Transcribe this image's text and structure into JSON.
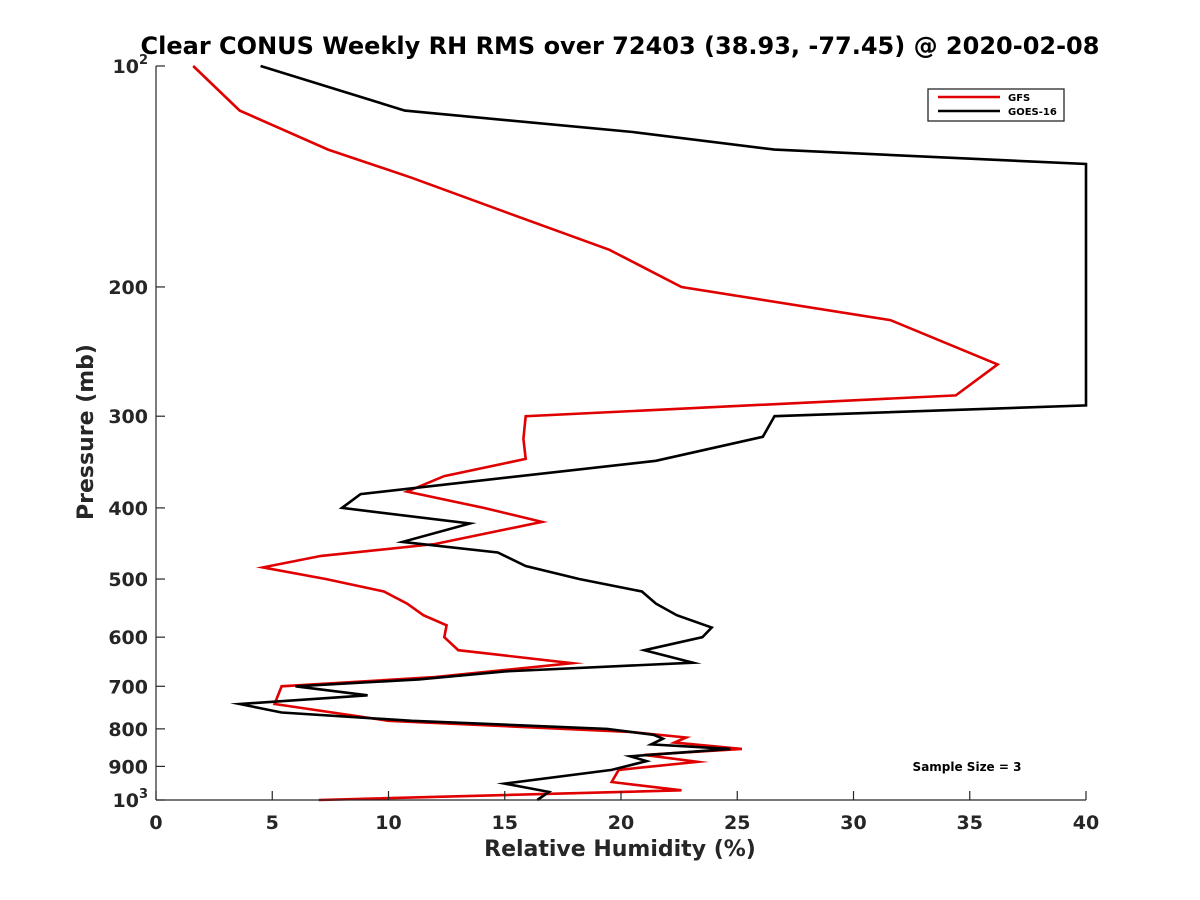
{
  "chart_data": {
    "type": "line",
    "title": "Clear CONUS Weekly RH RMS over 72403 (38.93, -77.45) @ 2020-02-08",
    "xlabel": "Relative Humidity (%)",
    "ylabel": "Pressure (mb)",
    "xlim": [
      0,
      40
    ],
    "ylim": [
      100,
      1000
    ],
    "y_scale": "log",
    "y_reversed": true,
    "grid": false,
    "legend_position": "top-right",
    "annotation": "Sample Size = 3",
    "x_ticks": [
      {
        "value": 0,
        "label": "0"
      },
      {
        "value": 5,
        "label": "5"
      },
      {
        "value": 10,
        "label": "10"
      },
      {
        "value": 15,
        "label": "15"
      },
      {
        "value": 20,
        "label": "20"
      },
      {
        "value": 25,
        "label": "25"
      },
      {
        "value": 30,
        "label": "30"
      },
      {
        "value": 35,
        "label": "35"
      },
      {
        "value": 40,
        "label": "40"
      }
    ],
    "y_ticks": [
      {
        "value": 100,
        "label": "10",
        "sup": "2"
      },
      {
        "value": 200,
        "label": "200"
      },
      {
        "value": 300,
        "label": "300"
      },
      {
        "value": 400,
        "label": "400"
      },
      {
        "value": 500,
        "label": "500"
      },
      {
        "value": 600,
        "label": "600"
      },
      {
        "value": 700,
        "label": "700"
      },
      {
        "value": 800,
        "label": "800"
      },
      {
        "value": 900,
        "label": "900"
      },
      {
        "value": 1000,
        "label": "10",
        "sup": "3"
      }
    ],
    "series": [
      {
        "name": "GFS",
        "color": "#e00000",
        "points": [
          [
            1.6,
            100
          ],
          [
            3.6,
            115
          ],
          [
            7.4,
            130
          ],
          [
            11.0,
            142
          ],
          [
            15.0,
            158
          ],
          [
            19.5,
            178
          ],
          [
            22.6,
            200
          ],
          [
            31.6,
            222
          ],
          [
            36.2,
            255
          ],
          [
            34.4,
            281
          ],
          [
            15.9,
            300
          ],
          [
            15.8,
            322
          ],
          [
            15.9,
            343
          ],
          [
            12.4,
            362
          ],
          [
            10.8,
            380
          ],
          [
            14.1,
            400
          ],
          [
            16.6,
            418
          ],
          [
            12.0,
            448
          ],
          [
            7.1,
            465
          ],
          [
            4.6,
            482
          ],
          [
            7.3,
            500
          ],
          [
            9.8,
            520
          ],
          [
            10.8,
            540
          ],
          [
            11.5,
            560
          ],
          [
            12.5,
            578
          ],
          [
            12.4,
            600
          ],
          [
            13.0,
            625
          ],
          [
            17.9,
            651
          ],
          [
            12.0,
            680
          ],
          [
            5.4,
            700
          ],
          [
            5.1,
            740
          ],
          [
            10.0,
            780
          ],
          [
            20.4,
            808
          ],
          [
            22.8,
            822
          ],
          [
            22.3,
            835
          ],
          [
            25.2,
            852
          ],
          [
            21.0,
            868
          ],
          [
            23.3,
            887
          ],
          [
            19.9,
            910
          ],
          [
            19.6,
            945
          ],
          [
            22.6,
            970
          ],
          [
            7.0,
            1000
          ]
        ]
      },
      {
        "name": "GOES-16",
        "color": "#000000",
        "points": [
          [
            4.5,
            100
          ],
          [
            10.7,
            115
          ],
          [
            20.5,
            123
          ],
          [
            26.6,
            130
          ],
          [
            40.0,
            136
          ],
          [
            40.0,
            290
          ],
          [
            26.6,
            300
          ],
          [
            26.1,
            320
          ],
          [
            21.5,
            345
          ],
          [
            8.8,
            383
          ],
          [
            8.0,
            400
          ],
          [
            13.5,
            420
          ],
          [
            10.6,
            445
          ],
          [
            14.7,
            460
          ],
          [
            15.9,
            480
          ],
          [
            18.2,
            500
          ],
          [
            20.9,
            520
          ],
          [
            21.5,
            540
          ],
          [
            22.4,
            560
          ],
          [
            23.9,
            582
          ],
          [
            23.5,
            600
          ],
          [
            21.0,
            625
          ],
          [
            23.1,
            650
          ],
          [
            15.0,
            668
          ],
          [
            11.3,
            685
          ],
          [
            6.0,
            700
          ],
          [
            9.1,
            720
          ],
          [
            3.6,
            740
          ],
          [
            5.4,
            760
          ],
          [
            11.0,
            780
          ],
          [
            19.4,
            800
          ],
          [
            21.4,
            815
          ],
          [
            21.8,
            825
          ],
          [
            21.3,
            840
          ],
          [
            24.7,
            852
          ],
          [
            20.4,
            872
          ],
          [
            21.1,
            885
          ],
          [
            19.6,
            910
          ],
          [
            15.0,
            950
          ],
          [
            16.9,
            975
          ],
          [
            16.4,
            1000
          ]
        ]
      }
    ]
  }
}
